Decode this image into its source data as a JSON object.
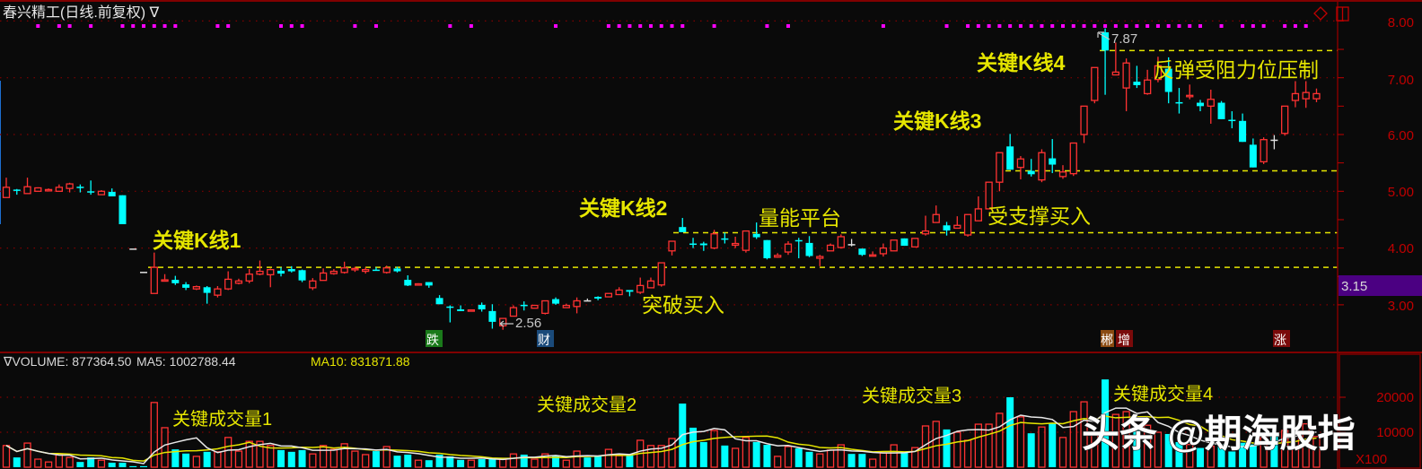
{
  "header": {
    "title": "春兴精工(日线.前复权) ∇"
  },
  "colors": {
    "up": "#ff3232",
    "down": "#00ffff",
    "flat": "#e0e0e0",
    "axis": "#c00000",
    "grid": "#800000",
    "annotation": "#e6e600",
    "ma5": "#e8e8e8",
    "ma10": "#e6e600",
    "marker_dot": "#ff00ff",
    "current_price_bg": "#4b0082"
  },
  "price_axis": {
    "ticks": [
      "8.00",
      "7.00",
      "6.00",
      "5.00",
      "4.00",
      "3.00"
    ],
    "current_price_label": "3.15"
  },
  "volume_axis": {
    "ticks": [
      "20000",
      "10000"
    ],
    "unit_label": "X100"
  },
  "volume_header": {
    "volume": "∇VOLUME: 877364.50",
    "ma5": "MA5: 1002788.44",
    "ma10": "MA10: 831871.88"
  },
  "annotations": {
    "k1": "关键K线1",
    "k2": "关键K线2",
    "k3": "关键K线3",
    "k4": "关键K线4",
    "platform": "量能平台",
    "breakout": "突破买入",
    "support": "受支撑买入",
    "resist": "反弹受阻力位压制",
    "v1": "关键成交量1",
    "v2": "关键成交量2",
    "v3": "关键成交量3",
    "v4": "关键成交量4",
    "high": "7.87",
    "low": "2.56"
  },
  "tags": {
    "die": "跌",
    "cai": "财",
    "chen": "郴",
    "zeng": "增",
    "zhang": "涨"
  },
  "icons": [
    "diamond-icon",
    "window-toggle-icon"
  ],
  "watermark": "头条 @期海股指",
  "chart_data": {
    "type": "candlestick",
    "ylim": [
      2.4,
      8.2
    ],
    "volume_ylim": [
      0,
      26000
    ],
    "grid": true,
    "ohlc": [
      [
        4.89,
        5.24,
        4.89,
        5.07
      ],
      [
        5.03,
        5.04,
        4.94,
        5.02
      ],
      [
        4.96,
        5.24,
        4.96,
        5.08
      ],
      [
        5.0,
        5.07,
        5.0,
        5.06
      ],
      [
        5.01,
        5.05,
        5.0,
        5.03
      ],
      [
        5.0,
        5.12,
        5.0,
        5.07
      ],
      [
        5.05,
        5.15,
        4.98,
        5.13
      ],
      [
        5.08,
        5.12,
        4.98,
        5.06
      ],
      [
        5.0,
        5.19,
        4.94,
        4.99
      ],
      [
        4.94,
        5.02,
        4.94,
        5.0
      ],
      [
        4.99,
        5.05,
        4.91,
        4.91
      ],
      [
        4.93,
        4.93,
        4.42,
        4.42
      ],
      [
        3.98,
        3.98,
        3.98,
        3.98
      ],
      [
        3.57,
        3.57,
        3.57,
        3.57
      ],
      [
        3.2,
        3.92,
        3.2,
        3.66
      ],
      [
        3.42,
        3.54,
        3.42,
        3.44
      ],
      [
        3.44,
        3.51,
        3.35,
        3.38
      ],
      [
        3.36,
        3.4,
        3.26,
        3.3
      ],
      [
        3.28,
        3.34,
        3.26,
        3.32
      ],
      [
        3.31,
        3.33,
        3.02,
        3.21
      ],
      [
        3.17,
        3.33,
        3.13,
        3.28
      ],
      [
        3.28,
        3.59,
        3.26,
        3.45
      ],
      [
        3.38,
        3.46,
        3.36,
        3.42
      ],
      [
        3.42,
        3.63,
        3.38,
        3.54
      ],
      [
        3.54,
        3.78,
        3.52,
        3.59
      ],
      [
        3.53,
        3.64,
        3.31,
        3.62
      ],
      [
        3.6,
        3.66,
        3.5,
        3.55
      ],
      [
        3.63,
        3.68,
        3.57,
        3.59
      ],
      [
        3.61,
        3.62,
        3.4,
        3.43
      ],
      [
        3.3,
        3.47,
        3.26,
        3.42
      ],
      [
        3.43,
        3.64,
        3.43,
        3.56
      ],
      [
        3.55,
        3.63,
        3.53,
        3.59
      ],
      [
        3.57,
        3.76,
        3.55,
        3.65
      ],
      [
        3.62,
        3.67,
        3.58,
        3.64
      ],
      [
        3.59,
        3.66,
        3.55,
        3.62
      ],
      [
        3.62,
        3.66,
        3.6,
        3.61
      ],
      [
        3.57,
        3.69,
        3.55,
        3.65
      ],
      [
        3.64,
        3.67,
        3.57,
        3.59
      ],
      [
        3.44,
        3.52,
        3.33,
        3.34
      ],
      [
        3.35,
        3.38,
        3.35,
        3.37
      ],
      [
        3.4,
        3.4,
        3.3,
        3.34
      ],
      [
        3.12,
        3.17,
        3.01,
        3.01
      ],
      [
        2.97,
        2.99,
        2.69,
        2.96
      ],
      [
        2.92,
        2.99,
        2.89,
        2.89
      ],
      [
        2.89,
        2.92,
        2.89,
        2.91
      ],
      [
        3.0,
        3.04,
        2.88,
        2.92
      ],
      [
        2.89,
        3.01,
        2.58,
        2.7
      ],
      [
        2.63,
        2.76,
        2.56,
        2.76
      ],
      [
        2.8,
        2.99,
        2.8,
        2.95
      ],
      [
        3.0,
        3.06,
        2.9,
        2.98
      ],
      [
        2.94,
        3.0,
        2.94,
        2.99
      ],
      [
        2.85,
        3.07,
        2.83,
        3.07
      ],
      [
        3.1,
        3.13,
        3.0,
        3.02
      ],
      [
        2.95,
        3.02,
        2.95,
        2.99
      ],
      [
        2.97,
        3.13,
        2.85,
        3.07
      ],
      [
        3.08,
        3.11,
        3.08,
        3.08
      ],
      [
        3.14,
        3.15,
        3.08,
        3.11
      ],
      [
        3.14,
        3.2,
        3.14,
        3.2
      ],
      [
        3.18,
        3.31,
        3.18,
        3.26
      ],
      [
        3.26,
        3.26,
        3.15,
        3.23
      ],
      [
        3.22,
        3.48,
        3.19,
        3.34
      ],
      [
        3.3,
        3.48,
        3.3,
        3.42
      ],
      [
        3.35,
        3.74,
        3.32,
        3.74
      ],
      [
        3.95,
        4.12,
        3.87,
        4.12
      ],
      [
        4.37,
        4.53,
        4.28,
        4.28
      ],
      [
        4.08,
        4.18,
        4.0,
        4.06
      ],
      [
        4.08,
        4.11,
        3.95,
        4.05
      ],
      [
        4.0,
        4.32,
        3.98,
        4.25
      ],
      [
        4.17,
        4.27,
        4.08,
        4.15
      ],
      [
        4.05,
        4.2,
        4.0,
        4.08
      ],
      [
        3.96,
        4.3,
        3.92,
        4.3
      ],
      [
        4.25,
        4.45,
        4.16,
        4.19
      ],
      [
        4.14,
        4.14,
        3.8,
        3.82
      ],
      [
        3.84,
        3.91,
        3.83,
        3.87
      ],
      [
        3.93,
        4.12,
        3.88,
        4.07
      ],
      [
        4.14,
        4.18,
        3.82,
        4.12
      ],
      [
        4.09,
        4.21,
        3.84,
        3.86
      ],
      [
        3.82,
        3.88,
        3.68,
        3.85
      ],
      [
        3.95,
        4.08,
        3.95,
        4.05
      ],
      [
        4.01,
        4.24,
        3.99,
        4.2
      ],
      [
        4.07,
        4.16,
        4.03,
        4.07
      ],
      [
        3.99,
        3.99,
        3.86,
        3.88
      ],
      [
        3.86,
        3.94,
        3.86,
        3.88
      ],
      [
        3.9,
        4.08,
        3.85,
        4.0
      ],
      [
        3.95,
        4.14,
        3.95,
        4.14
      ],
      [
        4.17,
        4.17,
        4.04,
        4.04
      ],
      [
        4.02,
        4.17,
        4.02,
        4.17
      ],
      [
        4.25,
        4.57,
        4.22,
        4.3
      ],
      [
        4.45,
        4.75,
        4.45,
        4.59
      ],
      [
        4.4,
        4.46,
        4.22,
        4.31
      ],
      [
        4.35,
        4.56,
        4.35,
        4.4
      ],
      [
        4.23,
        4.59,
        4.2,
        4.59
      ],
      [
        4.48,
        4.91,
        4.48,
        4.69
      ],
      [
        4.69,
        5.17,
        4.69,
        5.16
      ],
      [
        5.16,
        5.68,
        5.0,
        5.68
      ],
      [
        5.79,
        6.01,
        5.38,
        5.38
      ],
      [
        5.42,
        5.62,
        5.21,
        5.57
      ],
      [
        5.36,
        5.57,
        5.26,
        5.3
      ],
      [
        5.2,
        5.74,
        5.16,
        5.68
      ],
      [
        5.58,
        5.92,
        5.32,
        5.47
      ],
      [
        5.26,
        5.46,
        5.22,
        5.34
      ],
      [
        5.31,
        5.85,
        5.27,
        5.85
      ],
      [
        6.0,
        6.5,
        5.85,
        6.5
      ],
      [
        6.6,
        7.18,
        6.55,
        7.18
      ],
      [
        7.8,
        7.87,
        6.7,
        7.48
      ],
      [
        7.05,
        7.62,
        7.05,
        7.1
      ],
      [
        6.82,
        7.34,
        6.41,
        7.26
      ],
      [
        6.93,
        7.21,
        6.82,
        6.87
      ],
      [
        6.72,
        7.14,
        6.7,
        6.96
      ],
      [
        6.97,
        7.37,
        6.92,
        7.21
      ],
      [
        7.16,
        7.36,
        6.55,
        6.75
      ],
      [
        6.57,
        6.82,
        6.37,
        6.56
      ],
      [
        6.67,
        6.88,
        6.62,
        6.69
      ],
      [
        6.56,
        6.61,
        6.41,
        6.5
      ],
      [
        6.5,
        6.79,
        6.19,
        6.62
      ],
      [
        6.56,
        6.59,
        6.27,
        6.27
      ],
      [
        6.26,
        6.41,
        6.11,
        6.24
      ],
      [
        6.24,
        6.37,
        5.87,
        5.87
      ],
      [
        5.82,
        5.93,
        5.42,
        5.42
      ],
      [
        5.52,
        5.95,
        5.48,
        5.91
      ],
      [
        5.91,
        5.99,
        5.74,
        5.91
      ],
      [
        6.02,
        6.5,
        5.98,
        6.5
      ],
      [
        6.6,
        6.94,
        6.48,
        6.72
      ],
      [
        6.63,
        6.94,
        6.47,
        6.74
      ],
      [
        6.63,
        6.81,
        6.57,
        6.72
      ]
    ],
    "volume": [
      6200,
      2800,
      6900,
      2300,
      1500,
      3800,
      2800,
      1500,
      2800,
      2000,
      1300,
      1300,
      300,
      300,
      18500,
      11300,
      5100,
      3900,
      3100,
      4400,
      4400,
      8500,
      4600,
      7400,
      7400,
      6200,
      4900,
      4400,
      4900,
      3800,
      6200,
      5100,
      6700,
      4600,
      3600,
      4600,
      5900,
      3300,
      3600,
      2000,
      2000,
      3600,
      3100,
      2100,
      2000,
      2300,
      2300,
      2300,
      3800,
      3600,
      2300,
      3800,
      3300,
      2000,
      4600,
      2800,
      3300,
      5100,
      3300,
      3600,
      7700,
      6200,
      6200,
      8200,
      18200,
      11300,
      7200,
      10500,
      6200,
      5400,
      8500,
      7200,
      6400,
      3100,
      5900,
      5400,
      4400,
      3800,
      4900,
      6400,
      3800,
      3800,
      2300,
      4100,
      6400,
      4100,
      5600,
      11800,
      13100,
      10800,
      10000,
      7700,
      12300,
      12300,
      15400,
      20000,
      14400,
      9700,
      11500,
      12600,
      8500,
      15900,
      18700,
      9700,
      25100,
      15100,
      15900,
      11000,
      12000,
      10000,
      9500,
      7200,
      6500,
      5500,
      6000,
      6500,
      4500,
      7000,
      6500,
      8500,
      9000,
      10500,
      9500,
      12400,
      8774
    ],
    "reference_lines": [
      3.66,
      4.27,
      5.36,
      7.48
    ],
    "marker_dot_days": [
      3,
      5,
      6,
      8,
      11,
      12,
      13,
      14,
      15,
      16,
      20,
      21,
      26,
      27,
      28,
      33,
      35,
      42,
      44,
      52,
      57,
      58,
      59,
      60,
      61,
      62,
      63,
      64,
      67,
      72,
      74,
      83,
      89,
      91,
      92,
      93,
      94,
      95,
      96,
      97,
      98,
      99,
      100,
      101,
      102,
      103,
      104,
      105,
      106,
      107,
      108,
      109,
      110,
      111,
      112,
      113,
      115,
      117,
      118,
      119,
      121,
      122,
      123
    ]
  }
}
